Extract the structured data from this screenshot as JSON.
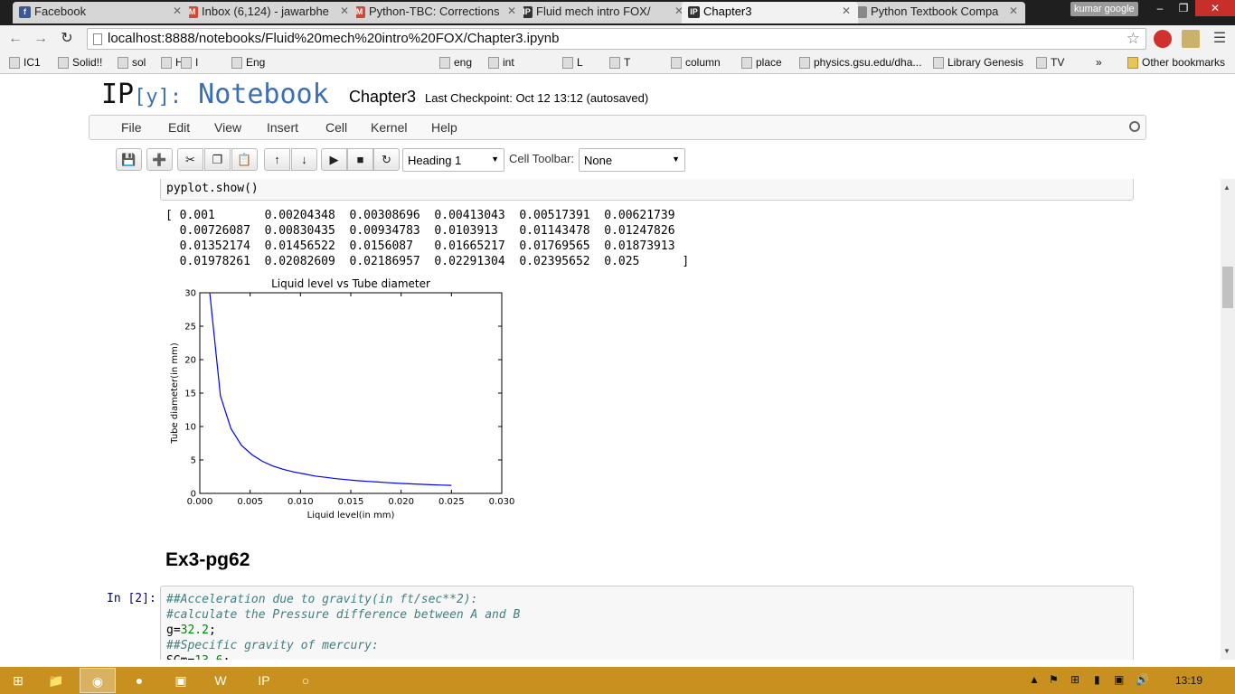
{
  "browser": {
    "tabs": [
      {
        "label": "Facebook",
        "icon": "facebook-icon",
        "color": "#3b5998",
        "glyph": "f"
      },
      {
        "label": "Inbox (6,124) - jawarbhe",
        "icon": "gmail-icon",
        "color": "#d14836",
        "glyph": "M"
      },
      {
        "label": "Python-TBC: Corrections",
        "icon": "gmail-icon",
        "color": "#d14836",
        "glyph": "M"
      },
      {
        "label": "Fluid mech intro FOX/",
        "icon": "ipython-icon",
        "color": "#333333",
        "glyph": "IP"
      },
      {
        "label": "Chapter3",
        "icon": "ipython-icon",
        "color": "#333333",
        "glyph": "IP"
      },
      {
        "label": "Python Textbook Compa",
        "icon": "page-icon",
        "color": "#888888",
        "glyph": ""
      }
    ],
    "active_tab": 4,
    "user_badge": "kumar google",
    "url": "localhost:8888/notebooks/Fluid%20mech%20intro%20FOX/Chapter3.ipynb",
    "bookmarks": [
      "IC1",
      "Solid!!",
      "sol",
      "H8",
      "I",
      "Eng",
      "eng",
      "int",
      "L",
      "T",
      "column",
      "place",
      "physics.gsu.edu/dha...",
      "Library Genesis",
      "TV",
      "Other bookmarks"
    ],
    "bookmarks_overflow": "»"
  },
  "notebook": {
    "logo_prefix": "IP",
    "logo_y": "[y]:",
    "logo_word": "Notebook",
    "name": "Chapter3",
    "checkpoint": "Last Checkpoint: Oct 12 13:12 (autosaved)",
    "menu": [
      "File",
      "Edit",
      "View",
      "Insert",
      "Cell",
      "Kernel",
      "Help"
    ],
    "cell_type": "Heading 1",
    "cell_toolbar_label": "Cell Toolbar:",
    "cell_toolbar_value": "None",
    "prev_input": "pyplot.show()",
    "output_lines": [
      "[ 0.001       0.00204348  0.00308696  0.00413043  0.00517391  0.00621739",
      "  0.00726087  0.00830435  0.00934783  0.0103913   0.01143478  0.01247826",
      "  0.01352174  0.01456522  0.0156087   0.01665217  0.01769565  0.01873913",
      "  0.01978261  0.02082609  0.02186957  0.02291304  0.02395652  0.025      ]"
    ],
    "heading": "Ex3-pg62",
    "prompt": "In [2]:",
    "input_lines": [
      {
        "text": "##Acceleration due to gravity(in ft/sec**2):",
        "kind": "comment"
      },
      {
        "text": "#calculate the Pressure difference between A and B",
        "kind": "comment"
      },
      {
        "text": "g=",
        "num": "32.2",
        "tail": ";",
        "kind": "code"
      },
      {
        "text": "##Specific gravity of mercury:",
        "kind": "comment"
      },
      {
        "text": "SGm=",
        "num": "13.6",
        "tail": ";",
        "kind": "code"
      }
    ]
  },
  "chart_data": {
    "type": "line",
    "title": "Liquid level vs Tube diameter",
    "xlabel": "Liquid level(in mm)",
    "ylabel": "Tube diameter(in mm)",
    "xlim": [
      0,
      0.03
    ],
    "ylim": [
      0,
      30
    ],
    "xticks": [
      "0.000",
      "0.005",
      "0.010",
      "0.015",
      "0.020",
      "0.025",
      "0.030"
    ],
    "yticks": [
      "0",
      "5",
      "10",
      "15",
      "20",
      "25",
      "30"
    ],
    "line_color": "#0000ff",
    "x": [
      0.001,
      0.00204348,
      0.00308696,
      0.00413043,
      0.00517391,
      0.00621739,
      0.00726087,
      0.00830435,
      0.00934783,
      0.0103913,
      0.01143478,
      0.01247826,
      0.01352174,
      0.01456522,
      0.0156087,
      0.01665217,
      0.01769565,
      0.01873913,
      0.01978261,
      0.02082609,
      0.02186957,
      0.02291304,
      0.02395652,
      0.025
    ],
    "y": [
      29.9,
      14.6,
      9.7,
      7.2,
      5.8,
      4.8,
      4.1,
      3.6,
      3.2,
      2.9,
      2.6,
      2.4,
      2.2,
      2.05,
      1.9,
      1.8,
      1.7,
      1.6,
      1.5,
      1.43,
      1.37,
      1.3,
      1.25,
      1.2
    ]
  },
  "taskbar": {
    "clock": "13:19"
  }
}
